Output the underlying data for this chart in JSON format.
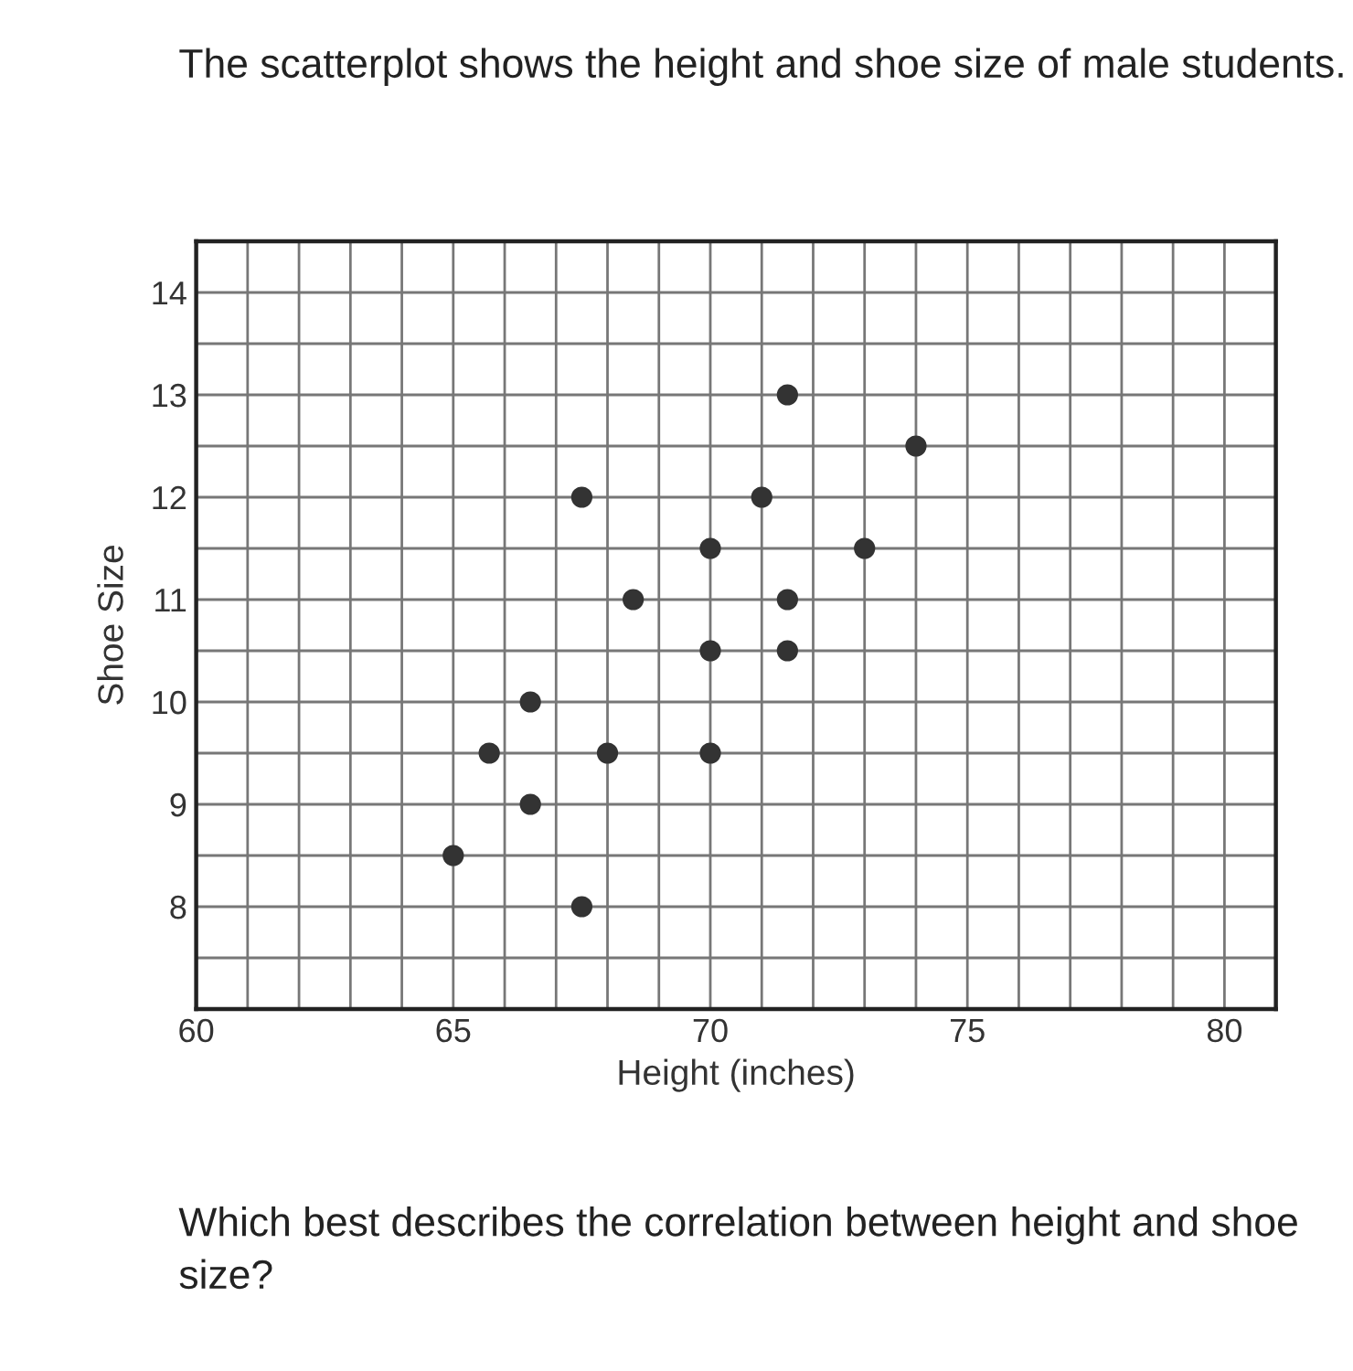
{
  "chart_data": {
    "type": "scatter",
    "title": "The scatterplot shows the height and shoe size of male students.",
    "xlabel": "Height (inches)",
    "ylabel": "Shoe Size",
    "annotations": [
      "Which best describes the correlation between height and shoe size?"
    ],
    "x": [
      65,
      65.7,
      66.5,
      66.5,
      67.5,
      67.5,
      68,
      68.5,
      70,
      70,
      70,
      71,
      71.5,
      71.5,
      71.5,
      73,
      74
    ],
    "values": [
      8.5,
      9.5,
      10,
      9,
      12,
      8,
      9.5,
      11,
      11.5,
      10.5,
      9.5,
      12,
      13,
      11,
      10.5,
      11.5,
      12.5
    ],
    "color": "#333333",
    "marker": "circle",
    "grid": true,
    "xlim": [
      60,
      81
    ],
    "ylim": [
      7,
      14.5
    ],
    "xticks": [
      60,
      {
        "value": 61,
        "label": null
      },
      {
        "value": 62,
        "label": null
      },
      {
        "value": 63,
        "label": null
      },
      {
        "value": 64,
        "label": null
      },
      65,
      {
        "value": 66,
        "label": null
      },
      {
        "value": 67,
        "label": null
      },
      {
        "value": 68,
        "label": null
      },
      {
        "value": 69,
        "label": null
      },
      70,
      {
        "value": 71,
        "label": null
      },
      {
        "value": 72,
        "label": null
      },
      {
        "value": 73,
        "label": null
      },
      {
        "value": 74,
        "label": null
      },
      75,
      {
        "value": 76,
        "label": null
      },
      {
        "value": 77,
        "label": null
      },
      {
        "value": 78,
        "label": null
      },
      {
        "value": 79,
        "label": null
      },
      80,
      {
        "value": 81,
        "label": null
      }
    ],
    "yticks": [
      {
        "value": 7,
        "label": null
      },
      {
        "value": 7.5,
        "label": null
      },
      8,
      {
        "value": 8.5,
        "label": null
      },
      9,
      {
        "value": 9.5,
        "label": null
      },
      10,
      {
        "value": 10.5,
        "label": null
      },
      11,
      {
        "value": 11.5,
        "label": null
      },
      12,
      {
        "value": 12.5,
        "label": null
      },
      13,
      {
        "value": 13.5,
        "label": null
      },
      14,
      {
        "value": 14.5,
        "label": null
      }
    ]
  }
}
